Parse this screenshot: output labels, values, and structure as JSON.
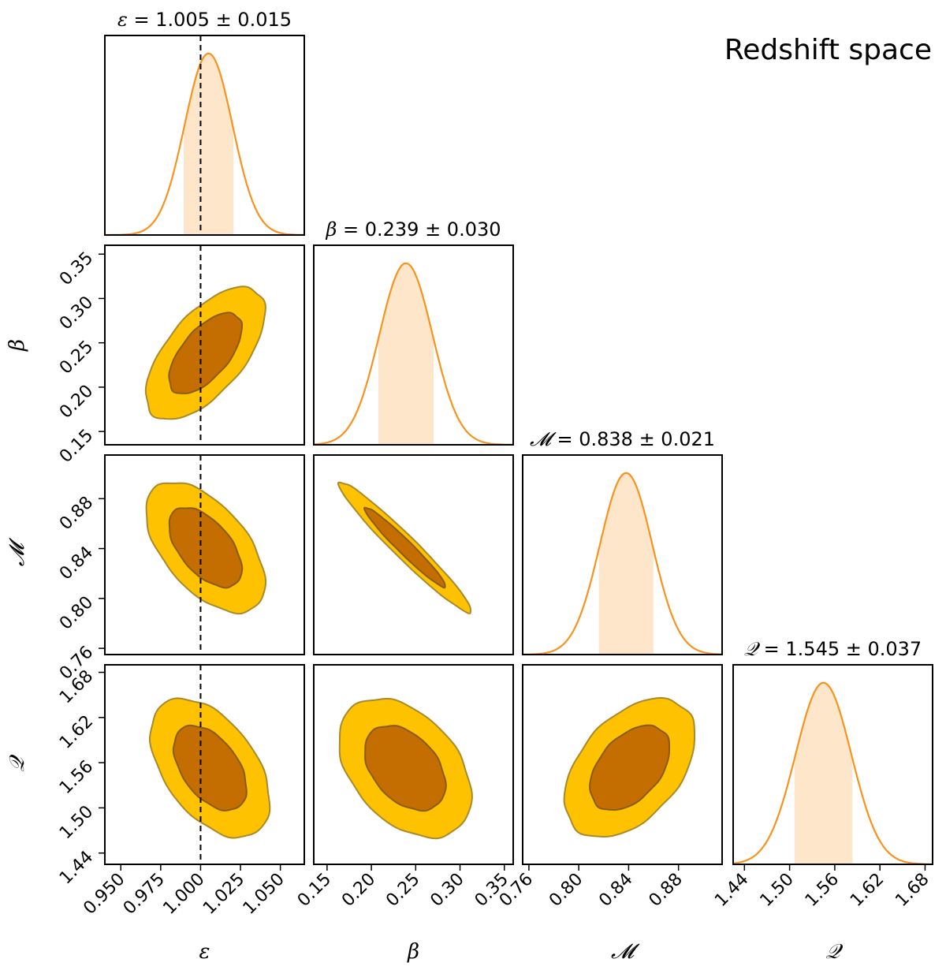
{
  "figure_title": "Redshift space",
  "colors": {
    "line": "#f7931e",
    "band": "#fde6c9",
    "inner": "#c46d00",
    "outer": "#fec200",
    "inner_edge": "#8a5c1a",
    "outer_edge": "#a88a2a",
    "frame": "#000000",
    "truth": "#000000"
  },
  "chart_data": {
    "type": "corner",
    "truth_line": {
      "parameter": "epsilon",
      "value": 1.0,
      "style": "dashed"
    },
    "parameters": [
      {
        "key": "epsilon",
        "label": "ε",
        "mean": 1.005,
        "sigma": 0.015,
        "title_symbol": "ε",
        "title_value": " = 1.005 ± 0.015",
        "range": [
          0.94,
          1.065
        ],
        "ticks": [
          "0.950",
          "0.975",
          "1.000",
          "1.025",
          "1.050"
        ]
      },
      {
        "key": "beta",
        "label": "β",
        "mean": 0.239,
        "sigma": 0.03,
        "title_symbol": "β",
        "title_value": " = 0.239 ± 0.030",
        "range": [
          0.135,
          0.36
        ],
        "ticks": [
          "0.15",
          "0.20",
          "0.25",
          "0.30",
          "0.35"
        ]
      },
      {
        "key": "M",
        "label": "𝓜",
        "mean": 0.838,
        "sigma": 0.021,
        "title_symbol": "𝓜",
        "title_value": " = 0.838 ± 0.021",
        "range": [
          0.755,
          0.915
        ],
        "ticks": [
          "0.76",
          "0.80",
          "0.84",
          "0.88"
        ]
      },
      {
        "key": "Q",
        "label": "𝒬",
        "mean": 1.545,
        "sigma": 0.037,
        "title_symbol": "𝒬",
        "title_value": " = 1.545 ± 0.037",
        "range": [
          1.425,
          1.69
        ],
        "ticks": [
          "1.44",
          "1.50",
          "1.56",
          "1.62",
          "1.68"
        ]
      }
    ],
    "contours": [
      {
        "x": "epsilon",
        "y": "beta",
        "rho": 0.62,
        "cx": 1.003,
        "cy": 0.238
      },
      {
        "x": "epsilon",
        "y": "M",
        "rho": -0.55,
        "cx": 1.003,
        "cy": 0.841
      },
      {
        "x": "beta",
        "y": "M",
        "rho": -0.97,
        "cx": 0.238,
        "cy": 0.841
      },
      {
        "x": "epsilon",
        "y": "Q",
        "rho": -0.48,
        "cx": 1.006,
        "cy": 1.553
      },
      {
        "x": "beta",
        "y": "Q",
        "rho": -0.4,
        "cx": 0.238,
        "cy": 1.553
      },
      {
        "x": "M",
        "y": "Q",
        "rho": 0.45,
        "cx": 0.841,
        "cy": 1.553
      }
    ],
    "levels": {
      "inner_sigma": 1.52,
      "outer_sigma": 2.49
    }
  }
}
